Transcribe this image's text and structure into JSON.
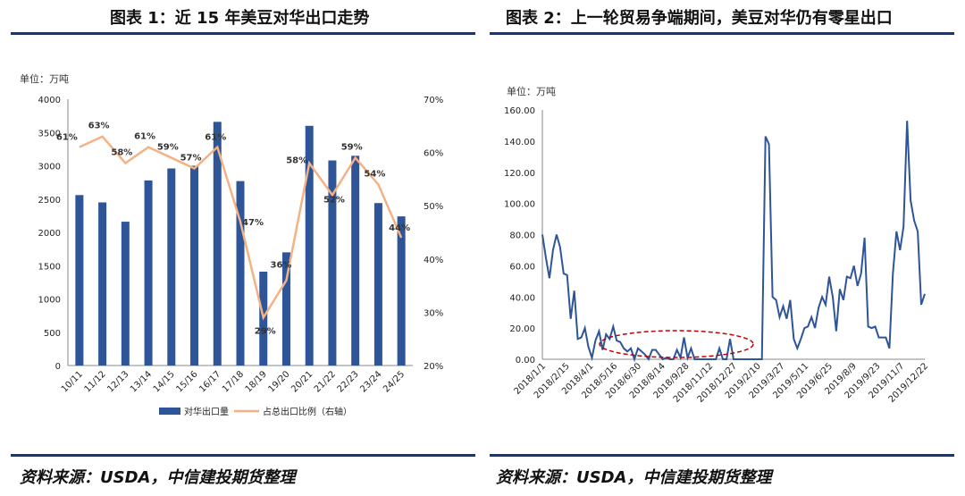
{
  "titles": {
    "left": "图表 1：近 15 年美豆对华出口走势",
    "right": "图表 2：上一轮贸易争端期间，美豆对华仍有零星出口"
  },
  "sources": {
    "left": "资料来源：USDA，中信建投期货整理",
    "right": "资料来源：USDA，中信建投期货整理"
  },
  "colors": {
    "bar": "#2e5597",
    "line_left": "#f4b183",
    "line_right": "#2e5597",
    "ellipse": "#c00000",
    "rule": "#20345e"
  },
  "chart_data": [
    {
      "type": "bar",
      "unit_label": "单位：万吨",
      "categories": [
        "10/11",
        "11/12",
        "12/13",
        "13/14",
        "14/15",
        "15/16",
        "16/17",
        "17/18",
        "18/19",
        "19/20",
        "20/21",
        "21/22",
        "22/23",
        "23/24",
        "24/25"
      ],
      "series": [
        {
          "name": "对华出口量",
          "type": "bar",
          "axis": "left",
          "values": [
            2560,
            2450,
            2160,
            2780,
            2960,
            3000,
            3660,
            2770,
            1410,
            1700,
            3600,
            3080,
            3150,
            2440,
            2240
          ]
        },
        {
          "name": "占总出口比例（右轴）",
          "type": "line",
          "axis": "right",
          "values": [
            61,
            63,
            58,
            61,
            59,
            57,
            61,
            47,
            29,
            36,
            58,
            52,
            59,
            54,
            44
          ],
          "labels": [
            "61%",
            "63%",
            "58%",
            "61%",
            "59%",
            "57%",
            "61%",
            "47%",
            "29%",
            "36%",
            "58%",
            "52%",
            "59%",
            "54%",
            "44%"
          ]
        }
      ],
      "ylim": [
        0,
        4000
      ],
      "yticks": [
        "0",
        "500",
        "1000",
        "1500",
        "2000",
        "2500",
        "3000",
        "3500",
        "4000"
      ],
      "y2lim": [
        20,
        70
      ],
      "y2ticks": [
        "20%",
        "30%",
        "40%",
        "50%",
        "60%",
        "70%"
      ],
      "legend_position": "bottom",
      "grid": false
    },
    {
      "type": "line",
      "unit_label": "单位：万吨",
      "series": [
        {
          "name": "",
          "values": [
            80,
            65,
            52,
            70,
            80,
            72,
            55,
            54,
            26,
            44,
            13,
            14,
            20,
            8,
            1,
            12,
            18,
            6,
            16,
            13,
            21,
            12,
            11,
            7,
            5,
            7,
            0,
            7,
            5,
            3,
            0,
            6,
            6,
            3,
            0,
            1,
            0,
            0,
            6,
            1,
            14,
            1,
            7,
            0,
            0,
            0,
            0,
            0,
            0,
            0,
            7,
            0,
            0,
            13,
            0,
            0,
            0,
            0,
            0,
            0,
            0,
            0,
            0,
            143,
            138,
            40,
            38,
            27,
            34,
            26,
            38,
            13,
            7,
            13,
            20,
            21,
            27,
            20,
            33,
            40,
            35,
            53,
            40,
            18,
            45,
            38,
            53,
            52,
            60,
            47,
            55,
            78,
            21,
            20,
            21,
            14,
            14,
            14,
            7,
            55,
            82,
            70,
            85,
            153,
            102,
            89,
            82,
            35,
            42
          ]
        }
      ],
      "xticks": [
        "2018/1/1",
        "2018/2/15",
        "2018/4/1",
        "2018/5/16",
        "2018/6/30",
        "2018/8/14",
        "2018/9/28",
        "2018/11/12",
        "2018/12/27",
        "2019/2/10",
        "2019/3/27",
        "2019/5/11",
        "2019/6/25",
        "2019/8/9",
        "2019/9/23",
        "2019/11/7",
        "2019/12/22"
      ],
      "ylim": [
        0,
        160
      ],
      "yticks": [
        "0.00",
        "20.00",
        "40.00",
        "60.00",
        "80.00",
        "100.00",
        "120.00",
        "140.00",
        "160.00"
      ],
      "annotation": "dashed-ellipse",
      "grid": false
    }
  ]
}
